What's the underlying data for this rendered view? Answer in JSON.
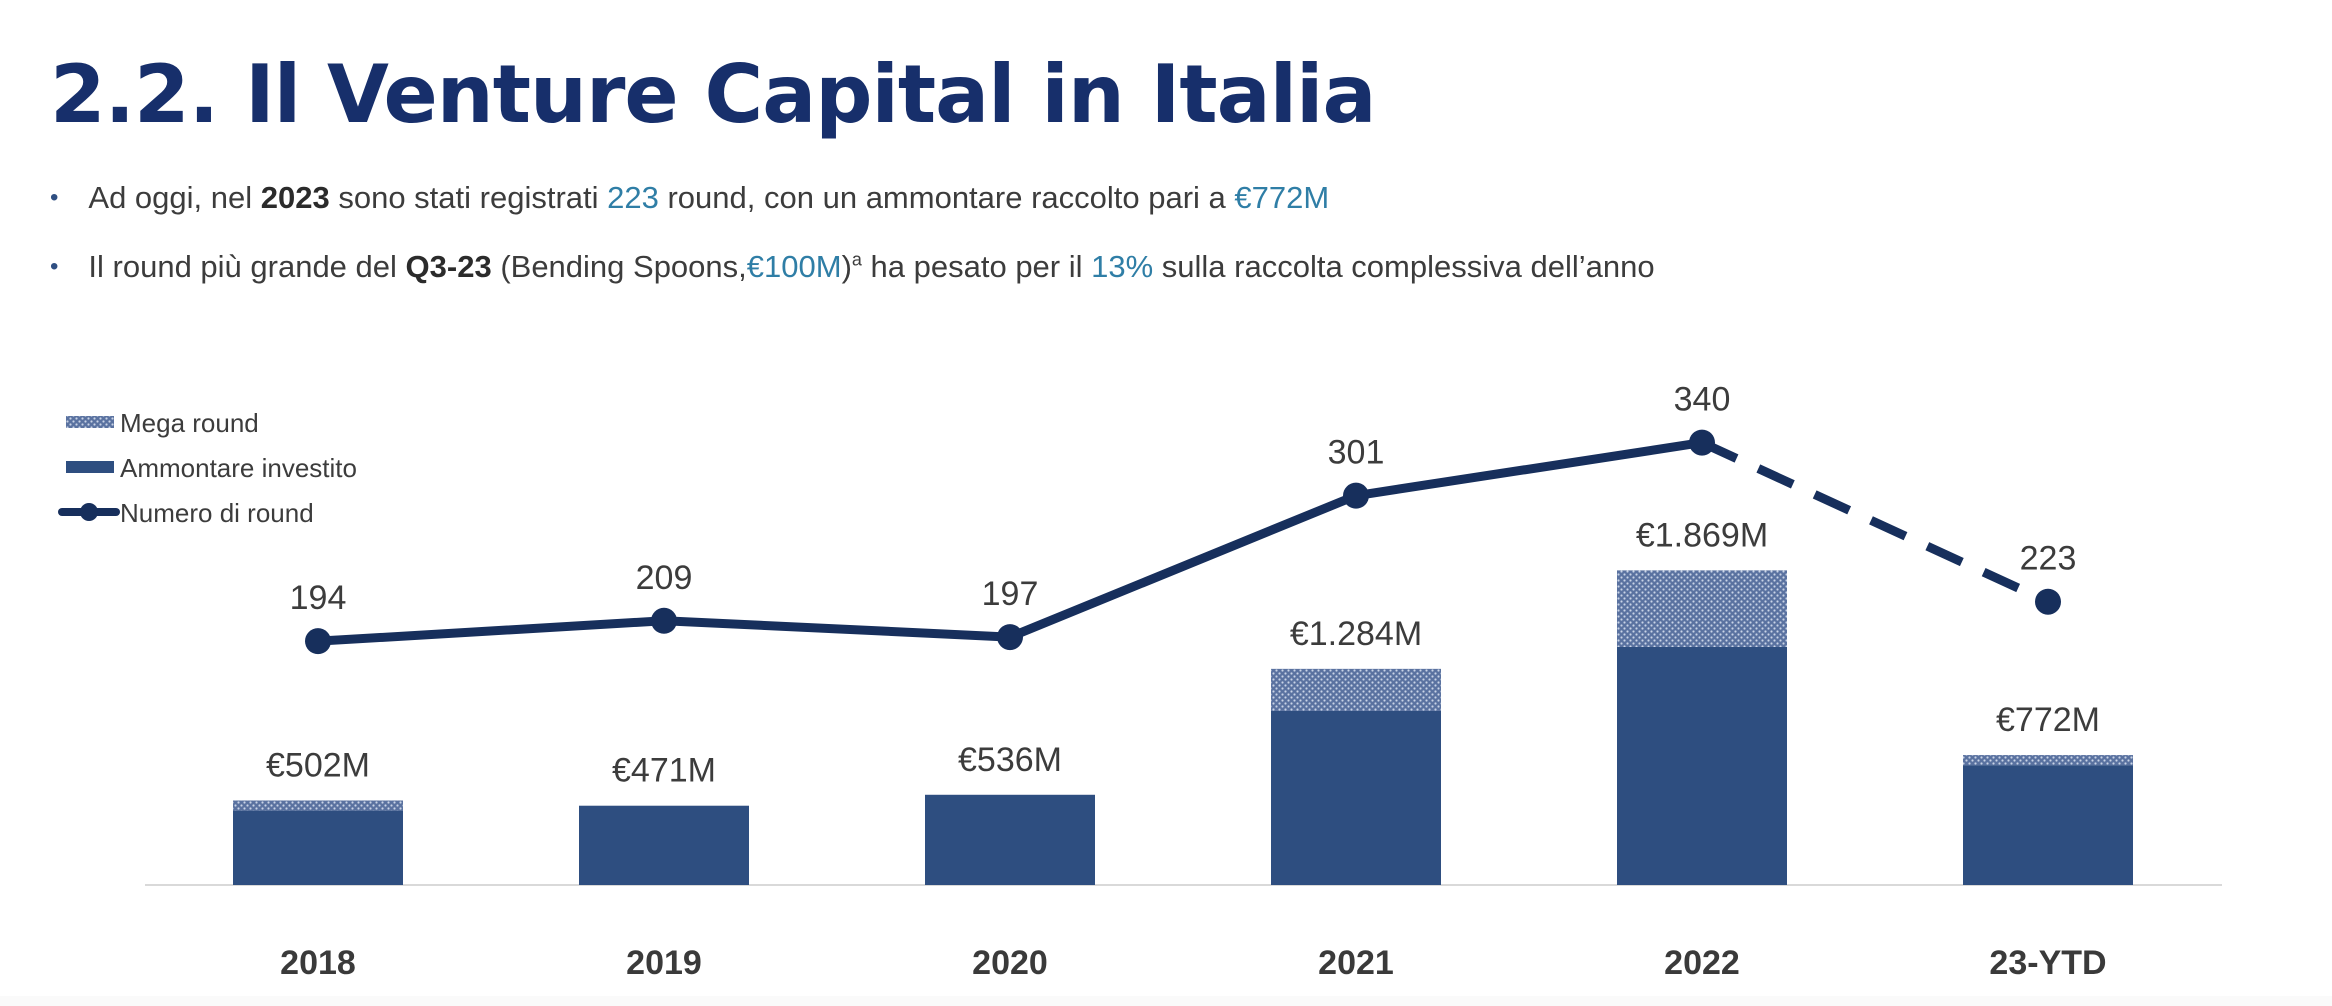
{
  "title": "2.2. Il Venture Capital in Italia",
  "bullets": [
    {
      "p1": "Ad oggi, nel ",
      "b1": "2023",
      "p2": " sono stati registrati ",
      "h1": "223",
      "p3": " round, con un ammontare raccolto pari a ",
      "h2": "€772M"
    },
    {
      "p1": "Il round più grande del ",
      "b1": "Q3-23",
      "p2": " (Bending Spoons,",
      "h1": "€100M",
      "p3": ")",
      "sup": "a",
      "p4": " ha pesato per il ",
      "h2": "13%",
      "p5": " sulla raccolta complessiva dell’anno"
    }
  ],
  "colors": {
    "title": "#172f6b",
    "highlight": "#2f7ea6",
    "bar": "#2e4e80",
    "mega": "#5a72a0",
    "line": "#172f5c",
    "text": "#3c3c3c"
  },
  "chart_data": {
    "type": "bar",
    "categories": [
      "2018",
      "2019",
      "2020",
      "2021",
      "2022",
      "23-YTD"
    ],
    "series": [
      {
        "name": "Mega round",
        "values": [
          60,
          0,
          0,
          250,
          455,
          60
        ]
      },
      {
        "name": "Ammontare investito",
        "values": [
          442,
          471,
          536,
          1034,
          1414,
          712
        ]
      },
      {
        "name": "Numero di round",
        "type": "line",
        "values": [
          194,
          209,
          197,
          301,
          340,
          223
        ],
        "dashed_from_index": 4
      }
    ],
    "totals": [
      502,
      471,
      536,
      1284,
      1869,
      772
    ],
    "total_labels": [
      "€502M",
      "€471M",
      "€536M",
      "€1.284M",
      "€1.869M",
      "€772M"
    ],
    "count_labels": [
      "194",
      "209",
      "197",
      "301",
      "340",
      "223"
    ],
    "legend": [
      "Mega round",
      "Ammontare investito",
      "Numero di round"
    ],
    "legend_position": "top-left",
    "grid": false,
    "bar_ylim": [
      0,
      3000
    ],
    "line_ylim": [
      0,
      500
    ]
  }
}
